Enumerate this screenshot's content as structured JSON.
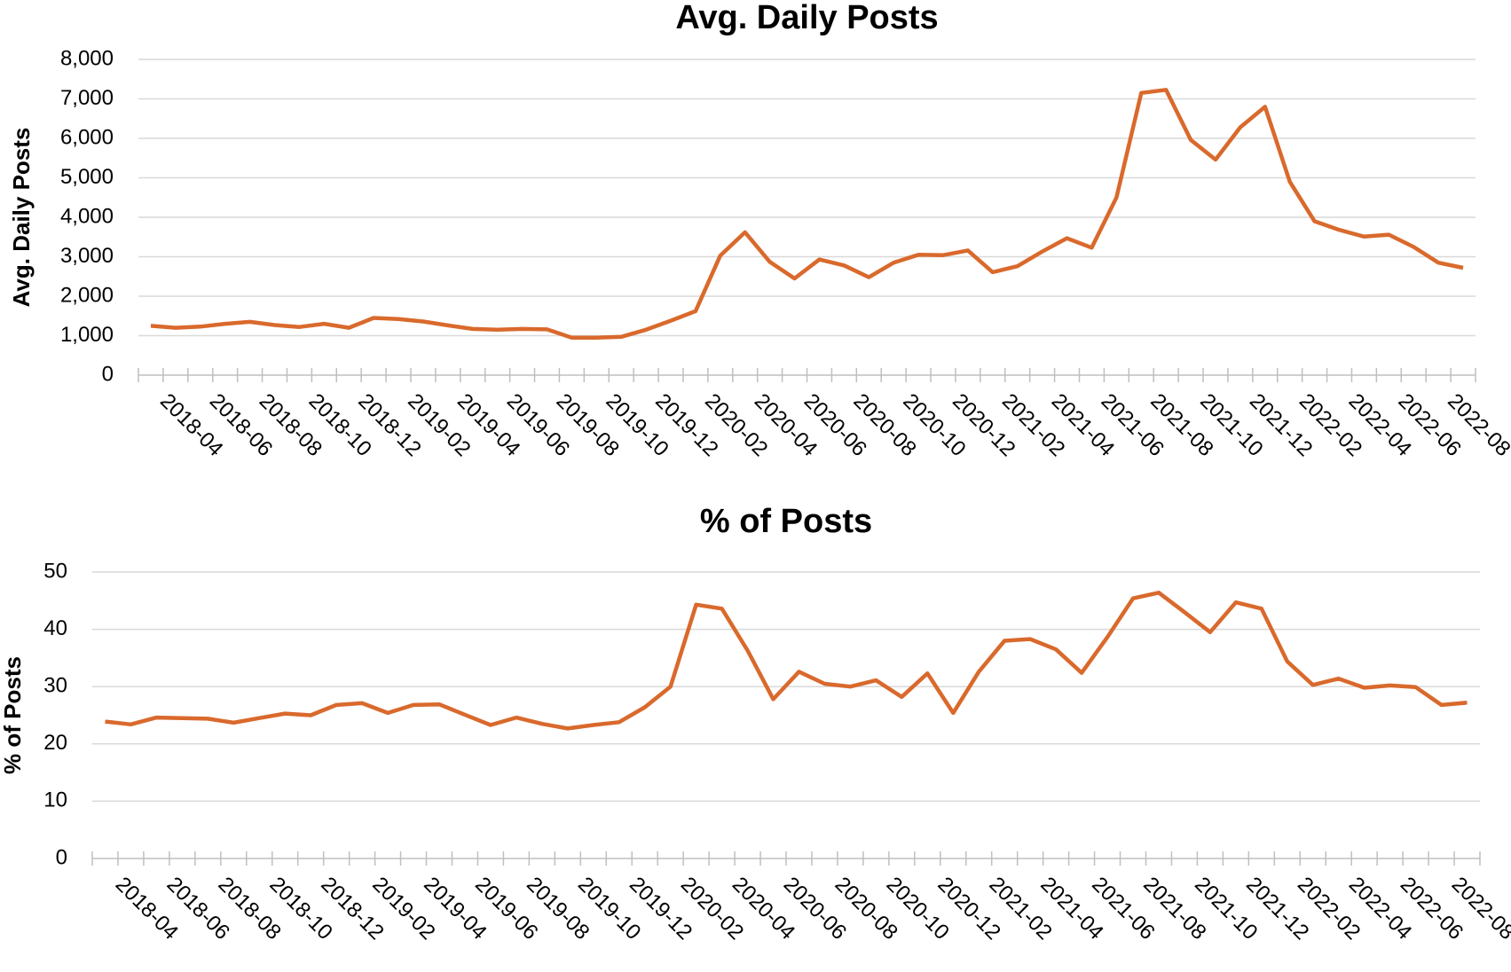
{
  "chart_data": [
    {
      "type": "line",
      "title": "Avg. Daily Posts",
      "y_label": "Avg. Daily Posts",
      "categories": [
        null,
        "2018-04",
        null,
        "2018-06",
        null,
        "2018-08",
        null,
        "2018-10",
        null,
        "2018-12",
        null,
        "2019-02",
        null,
        "2019-04",
        null,
        "2019-06",
        null,
        "2019-08",
        null,
        "2019-10",
        null,
        "2019-12",
        null,
        "2020-02",
        null,
        "2020-04",
        null,
        "2020-06",
        null,
        "2020-08",
        null,
        "2020-10",
        null,
        "2020-12",
        null,
        "2021-02",
        null,
        "2021-04",
        null,
        "2021-06",
        null,
        "2021-08",
        null,
        "2021-10",
        null,
        "2021-12",
        null,
        "2022-02",
        null,
        "2022-04",
        null,
        "2022-06",
        null,
        "2022-08"
      ],
      "series": [
        {
          "name": "Avg. Daily Posts",
          "color": "#d9692c",
          "values": [
            1250,
            1200,
            1230,
            1300,
            1350,
            1270,
            1220,
            1300,
            1200,
            1450,
            1420,
            1360,
            1260,
            1170,
            1150,
            1170,
            1160,
            950,
            950,
            970,
            1150,
            1380,
            1620,
            3030,
            3620,
            2870,
            2450,
            2930,
            2780,
            2480,
            2850,
            3050,
            3040,
            3160,
            2610,
            2760,
            3130,
            3470,
            3230,
            4500,
            7150,
            7230,
            5960,
            5460,
            6280,
            6800,
            4900,
            3900,
            3680,
            3510,
            3560,
            3250,
            2850,
            2720
          ]
        }
      ],
      "ylim": [
        0,
        8000
      ],
      "yticks": [
        0,
        {
          "value": 1000,
          "label": "1,000"
        },
        {
          "value": 2000,
          "label": "2,000"
        },
        {
          "value": 3000,
          "label": "3,000"
        },
        {
          "value": 4000,
          "label": "4,000"
        },
        {
          "value": 5000,
          "label": "5,000"
        },
        {
          "value": 6000,
          "label": "6,000"
        },
        {
          "value": 7000,
          "label": "7,000"
        },
        {
          "value": 8000,
          "label": "8,000"
        }
      ],
      "grid": true
    },
    {
      "type": "line",
      "title": "% of Posts",
      "y_label": "% of Posts",
      "categories": [
        null,
        "2018-04",
        null,
        "2018-06",
        null,
        "2018-08",
        null,
        "2018-10",
        null,
        "2018-12",
        null,
        "2019-02",
        null,
        "2019-04",
        null,
        "2019-06",
        null,
        "2019-08",
        null,
        "2019-10",
        null,
        "2019-12",
        null,
        "2020-02",
        null,
        "2020-04",
        null,
        "2020-06",
        null,
        "2020-08",
        null,
        "2020-10",
        null,
        "2020-12",
        null,
        "2021-02",
        null,
        "2021-04",
        null,
        "2021-06",
        null,
        "2021-08",
        null,
        "2021-10",
        null,
        "2021-12",
        null,
        "2022-02",
        null,
        "2022-04",
        null,
        "2022-06",
        null,
        "2022-08"
      ],
      "series": [
        {
          "name": "% of Posts",
          "color": "#d9692c",
          "values": [
            23.9,
            23.4,
            24.6,
            24.5,
            24.4,
            23.7,
            24.5,
            25.3,
            25.0,
            26.8,
            27.1,
            25.4,
            26.8,
            26.9,
            25.1,
            23.3,
            24.6,
            23.5,
            22.7,
            23.3,
            23.8,
            26.4,
            30.0,
            44.3,
            43.6,
            36.3,
            27.8,
            32.6,
            30.5,
            30.0,
            31.1,
            28.2,
            32.3,
            25.4,
            32.6,
            38.0,
            38.3,
            36.5,
            32.4,
            38.6,
            45.4,
            46.4,
            43.0,
            39.5,
            44.7,
            43.6,
            34.4,
            30.3,
            31.4,
            29.8,
            30.2,
            29.9,
            26.8,
            27.2
          ]
        }
      ],
      "ylim": [
        0,
        50
      ],
      "yticks": [
        0,
        10,
        20,
        30,
        40,
        50
      ],
      "grid": true
    }
  ]
}
